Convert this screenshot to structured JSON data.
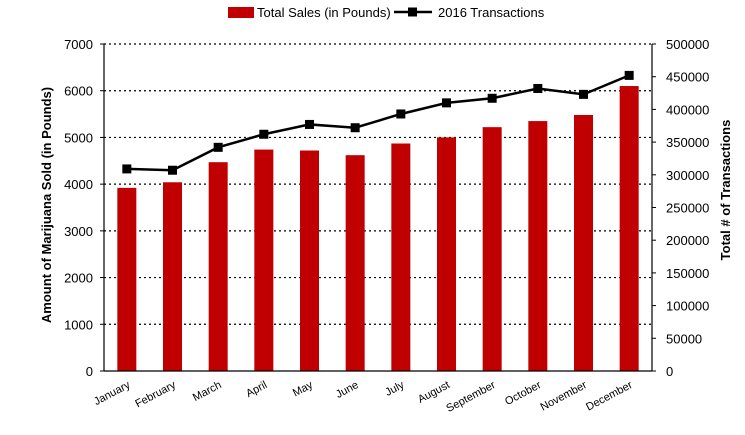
{
  "chart_data": {
    "type": "bar",
    "categories": [
      "January",
      "February",
      "March",
      "April",
      "May",
      "June",
      "July",
      "August",
      "September",
      "October",
      "November",
      "December"
    ],
    "series": [
      {
        "name": "Total Sales (in Pounds)",
        "type": "bar",
        "axis": "left",
        "values": [
          3920,
          4040,
          4470,
          4740,
          4720,
          4620,
          4870,
          5000,
          5220,
          5350,
          5480,
          6100
        ]
      },
      {
        "name": "2016 Transactions",
        "type": "line",
        "axis": "right",
        "values": [
          309000,
          307000,
          342000,
          362000,
          377000,
          372000,
          393000,
          410000,
          417000,
          432000,
          423000,
          452000
        ]
      }
    ],
    "ylabel": "Amount of Marijuana Sold (in Pounds)",
    "ylabel_right": "Total # of Transactions",
    "ylim": [
      0,
      7000
    ],
    "yticks": [
      "0",
      "1000",
      "2000",
      "3000",
      "4000",
      "5000",
      "6000",
      "7000"
    ],
    "ylim_right": [
      0,
      500000
    ],
    "yticks_right": [
      "0",
      "50000",
      "100000",
      "150000",
      "200000",
      "250000",
      "300000",
      "350000",
      "400000",
      "450000",
      "500000"
    ],
    "grid": "horizontal-dotted",
    "legend_position": "top",
    "colors": {
      "bar": "#c00000",
      "line": "#000000"
    }
  }
}
